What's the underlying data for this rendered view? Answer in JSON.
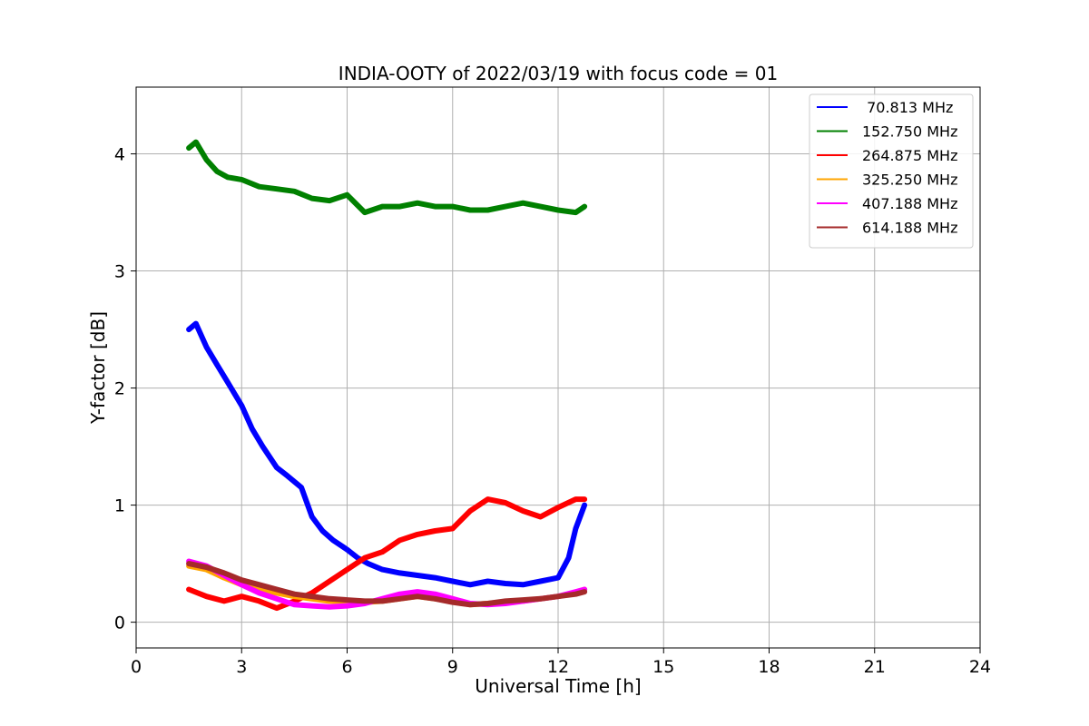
{
  "chart_data": {
    "type": "line",
    "title": "INDIA-OOTY of 2022/03/19 with focus code = 01",
    "xlabel": "Universal Time [h]",
    "ylabel": "Y-factor [dB]",
    "xlim": [
      0,
      24
    ],
    "ylim": [
      -0.22,
      4.57
    ],
    "xticks": [
      0,
      3,
      6,
      9,
      12,
      15,
      18,
      21,
      24
    ],
    "yticks": [
      0,
      1,
      2,
      3,
      4
    ],
    "grid": true,
    "legend_position": "top-right",
    "series": [
      {
        "name": " 70.813 MHz",
        "color": "#0000ff",
        "x": [
          1.5,
          1.7,
          2.0,
          2.3,
          2.6,
          3.0,
          3.3,
          3.6,
          4.0,
          4.3,
          4.7,
          5.0,
          5.3,
          5.6,
          6.0,
          6.3,
          6.6,
          7.0,
          7.5,
          8.0,
          8.5,
          9.0,
          9.5,
          10.0,
          10.5,
          11.0,
          11.5,
          12.0,
          12.3,
          12.5,
          12.75
        ],
        "y": [
          2.5,
          2.55,
          2.35,
          2.2,
          2.05,
          1.85,
          1.65,
          1.5,
          1.32,
          1.25,
          1.15,
          0.9,
          0.78,
          0.7,
          0.62,
          0.55,
          0.5,
          0.45,
          0.42,
          0.4,
          0.38,
          0.35,
          0.32,
          0.35,
          0.33,
          0.32,
          0.35,
          0.38,
          0.55,
          0.8,
          1.0
        ]
      },
      {
        "name": "152.750 MHz",
        "color": "#008000",
        "x": [
          1.5,
          1.7,
          2.0,
          2.3,
          2.6,
          3.0,
          3.5,
          4.0,
          4.5,
          5.0,
          5.5,
          6.0,
          6.5,
          7.0,
          7.5,
          8.0,
          8.5,
          9.0,
          9.5,
          10.0,
          10.5,
          11.0,
          11.5,
          12.0,
          12.5,
          12.75
        ],
        "y": [
          4.05,
          4.1,
          3.95,
          3.85,
          3.8,
          3.78,
          3.72,
          3.7,
          3.68,
          3.62,
          3.6,
          3.65,
          3.5,
          3.55,
          3.55,
          3.58,
          3.55,
          3.55,
          3.52,
          3.52,
          3.55,
          3.58,
          3.55,
          3.52,
          3.5,
          3.55
        ]
      },
      {
        "name": "264.875 MHz",
        "color": "#ff0000",
        "x": [
          1.5,
          2.0,
          2.5,
          3.0,
          3.5,
          4.0,
          4.5,
          5.0,
          5.5,
          6.0,
          6.5,
          7.0,
          7.5,
          8.0,
          8.5,
          9.0,
          9.5,
          10.0,
          10.5,
          11.0,
          11.5,
          12.0,
          12.5,
          12.75
        ],
        "y": [
          0.28,
          0.22,
          0.18,
          0.22,
          0.18,
          0.12,
          0.18,
          0.25,
          0.35,
          0.45,
          0.55,
          0.6,
          0.7,
          0.75,
          0.78,
          0.8,
          0.95,
          1.05,
          1.02,
          0.95,
          0.9,
          0.98,
          1.05,
          1.05
        ]
      },
      {
        "name": "325.250 MHz",
        "color": "#ffa500",
        "x": [
          1.5,
          2.0,
          2.5,
          3.0,
          3.5,
          4.0,
          4.5,
          5.0,
          5.5,
          6.0,
          6.5,
          7.0,
          7.5,
          8.0,
          8.5,
          9.0,
          9.5,
          10.0,
          10.5,
          11.0,
          11.5,
          12.0,
          12.5,
          12.75
        ],
        "y": [
          0.48,
          0.45,
          0.38,
          0.32,
          0.28,
          0.25,
          0.22,
          0.2,
          0.18,
          0.18,
          0.17,
          0.18,
          0.2,
          0.22,
          0.2,
          0.18,
          0.15,
          0.16,
          0.17,
          0.18,
          0.2,
          0.22,
          0.25,
          0.28
        ]
      },
      {
        "name": "407.188 MHz",
        "color": "#ff00ff",
        "x": [
          1.5,
          2.0,
          2.5,
          3.0,
          3.5,
          4.0,
          4.5,
          5.0,
          5.5,
          6.0,
          6.5,
          7.0,
          7.5,
          8.0,
          8.5,
          9.0,
          9.5,
          10.0,
          10.5,
          11.0,
          11.5,
          12.0,
          12.5,
          12.75
        ],
        "y": [
          0.52,
          0.48,
          0.4,
          0.32,
          0.25,
          0.2,
          0.15,
          0.14,
          0.13,
          0.14,
          0.16,
          0.2,
          0.24,
          0.26,
          0.24,
          0.2,
          0.16,
          0.15,
          0.16,
          0.18,
          0.2,
          0.22,
          0.26,
          0.28
        ]
      },
      {
        "name": "614.188 MHz",
        "color": "#a52a2a",
        "x": [
          1.5,
          2.0,
          2.5,
          3.0,
          3.5,
          4.0,
          4.5,
          5.0,
          5.5,
          6.0,
          6.5,
          7.0,
          7.5,
          8.0,
          8.5,
          9.0,
          9.5,
          10.0,
          10.5,
          11.0,
          11.5,
          12.0,
          12.5,
          12.75
        ],
        "y": [
          0.5,
          0.47,
          0.42,
          0.36,
          0.32,
          0.28,
          0.24,
          0.22,
          0.2,
          0.19,
          0.18,
          0.18,
          0.2,
          0.22,
          0.2,
          0.17,
          0.15,
          0.16,
          0.18,
          0.19,
          0.2,
          0.22,
          0.24,
          0.26
        ]
      }
    ]
  }
}
